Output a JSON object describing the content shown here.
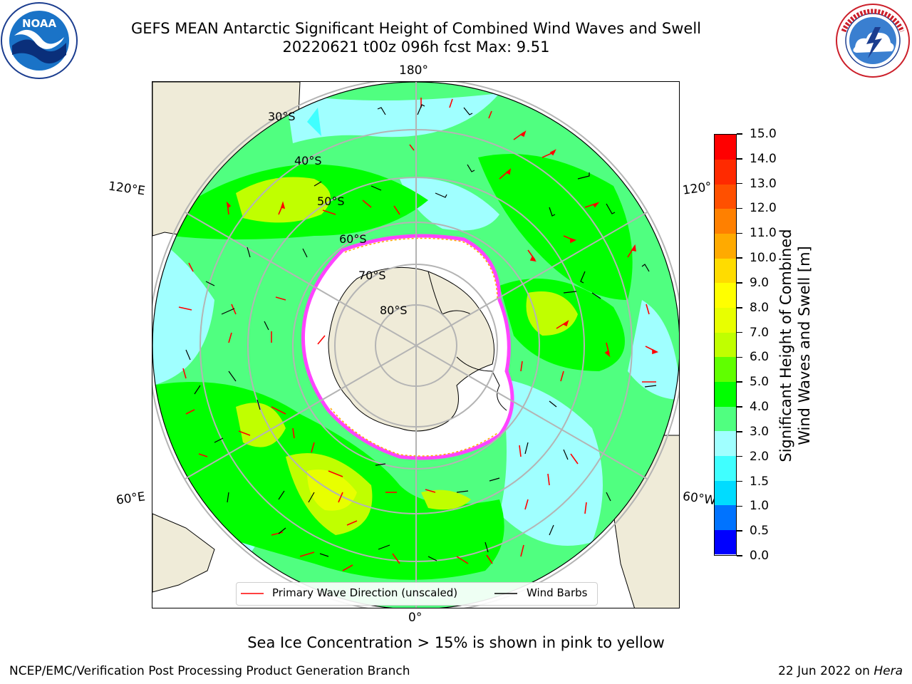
{
  "header": {
    "title_line1": "GEFS MEAN Antarctic Significant Height of Combined Wind Waves and Swell",
    "title_line2": "20220621 t00z 096h fcst   Max: 9.51"
  },
  "logos": {
    "left": "noaa-logo",
    "right": "nws-logo",
    "noaa_text": "NOAA"
  },
  "map": {
    "projection": "south-polar-stereographic",
    "lon_labels": {
      "top": "180°",
      "upper_left": "120°E",
      "upper_right": "120°",
      "lower_left": "60°E",
      "lower_right": "60°W",
      "bottom": "0°"
    },
    "lat_labels": [
      "30°S",
      "40°S",
      "50°S",
      "60°S",
      "70°S",
      "80°S"
    ],
    "colors": {
      "land": "#efebd8",
      "ice": "#ffffff",
      "ice_edge": "#ff44ff",
      "grid": "#b4b4b4"
    }
  },
  "colorbar": {
    "title_line1": "Significant Height of Combined",
    "title_line2": "Wind Waves and Swell [m]",
    "ticks": [
      "0.0",
      "0.5",
      "1.0",
      "1.5",
      "2.0",
      "3.0",
      "4.0",
      "5.0",
      "6.0",
      "7.0",
      "8.0",
      "9.0",
      "10.0",
      "11.0",
      "12.0",
      "13.0",
      "14.0",
      "15.0"
    ],
    "colors": [
      "#0000ff",
      "#0073ff",
      "#00dcff",
      "#40ffff",
      "#a0ffff",
      "#50ff80",
      "#00ff00",
      "#60ff00",
      "#c0ff00",
      "#e8ff00",
      "#ffff00",
      "#ffdc00",
      "#ffaa00",
      "#ff8000",
      "#ff5000",
      "#ff2a00",
      "#ff0000"
    ]
  },
  "legend": {
    "wave_label": "Primary Wave Direction (unscaled)",
    "wind_label": "Wind Barbs",
    "wave_color": "#ff0000",
    "wind_color": "#000000"
  },
  "note": "Sea Ice Concentration > 15% is shown in pink to yellow",
  "footer": {
    "left": "NCEP/EMC/Verification Post Processing Product Generation Branch",
    "right_date": "22 Jun 2022 on ",
    "right_machine": "Hera"
  }
}
